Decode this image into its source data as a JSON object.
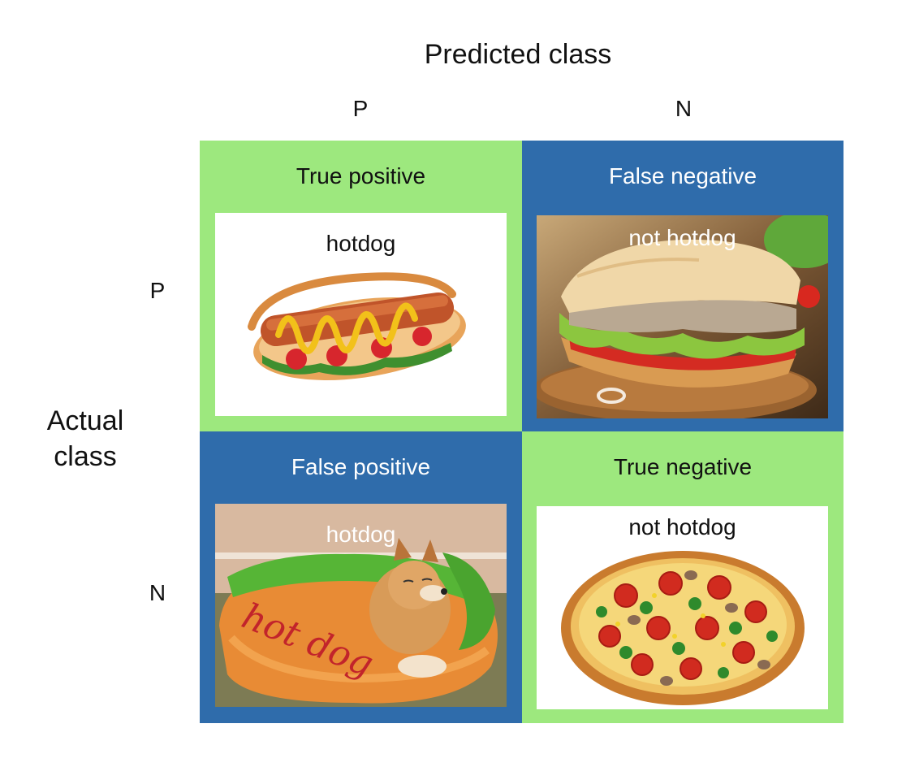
{
  "header": {
    "predicted_title": "Predicted class",
    "predicted_p": "P",
    "predicted_n": "N",
    "actual_title_line1": "Actual",
    "actual_title_line2": "class",
    "actual_p": "P",
    "actual_n": "N"
  },
  "cells": {
    "tp": {
      "label": "True positive",
      "caption": "hotdog",
      "image": "hotdog-image",
      "color": "#9de87e"
    },
    "fn": {
      "label": "False negative",
      "caption": "not hotdog",
      "image": "sandwich-image",
      "color": "#2f6cab"
    },
    "fp": {
      "label": "False positive",
      "caption": "hotdog",
      "image": "dog-in-hotdog-bed-image",
      "color": "#2f6cab"
    },
    "tn": {
      "label": "True negative",
      "caption": "not hotdog",
      "image": "pizza-image",
      "color": "#9de87e"
    }
  },
  "bed_text": "hot dog",
  "colors": {
    "green": "#9de87e",
    "blue": "#2f6cab"
  }
}
